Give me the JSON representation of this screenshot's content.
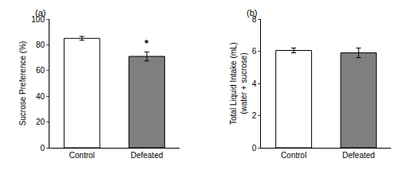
{
  "chart_data": [
    {
      "type": "bar",
      "title": "(a)",
      "categories": [
        "Control",
        "Defeated"
      ],
      "values": [
        85.0,
        71.0
      ],
      "errors": [
        1.5,
        3.5
      ],
      "colors": [
        "white",
        "#7f7f7f"
      ],
      "ylabel": "Sucrose Preference (%)",
      "ylim": [
        0,
        100
      ],
      "yticks": [
        0,
        20,
        40,
        60,
        80,
        100
      ],
      "grid": false,
      "annotations": [
        {
          "text": "*",
          "x": "Defeated",
          "y": 75.5
        }
      ]
    },
    {
      "type": "bar",
      "title": "(b)",
      "categories": [
        "Control",
        "Defeated"
      ],
      "values": [
        6.05,
        5.9
      ],
      "errors": [
        0.15,
        0.3
      ],
      "colors": [
        "white",
        "#7f7f7f"
      ],
      "ylabel": "Total Liquid Intake (mL)\n(water + sucrose)",
      "ylim": [
        0,
        8
      ],
      "yticks": [
        0,
        2,
        4,
        6,
        8
      ],
      "grid": false
    }
  ]
}
